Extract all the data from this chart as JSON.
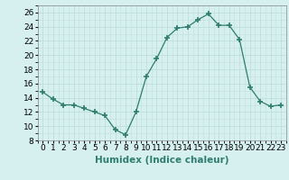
{
  "x": [
    0,
    1,
    2,
    3,
    4,
    5,
    6,
    7,
    8,
    9,
    10,
    11,
    12,
    13,
    14,
    15,
    16,
    17,
    18,
    19,
    20,
    21,
    22,
    23
  ],
  "y": [
    14.8,
    13.8,
    13.0,
    13.0,
    12.5,
    12.0,
    11.5,
    9.5,
    8.8,
    12.0,
    17.0,
    19.5,
    22.5,
    23.8,
    24.0,
    25.0,
    25.8,
    24.2,
    24.2,
    22.2,
    15.5,
    13.5,
    12.8,
    13.0
  ],
  "line_color": "#2e7d6e",
  "marker": "+",
  "marker_size": 4,
  "bg_color": "#d6f0f0",
  "grid_major_color": "#c0dede",
  "grid_minor_color": "#d0e8e8",
  "xlabel": "Humidex (Indice chaleur)",
  "xlim": [
    -0.5,
    23.5
  ],
  "ylim": [
    8,
    27
  ],
  "yticks": [
    8,
    10,
    12,
    14,
    16,
    18,
    20,
    22,
    24,
    26
  ],
  "xticks": [
    0,
    1,
    2,
    3,
    4,
    5,
    6,
    7,
    8,
    9,
    10,
    11,
    12,
    13,
    14,
    15,
    16,
    17,
    18,
    19,
    20,
    21,
    22,
    23
  ],
  "label_fontsize": 7.5,
  "tick_fontsize": 6.5
}
